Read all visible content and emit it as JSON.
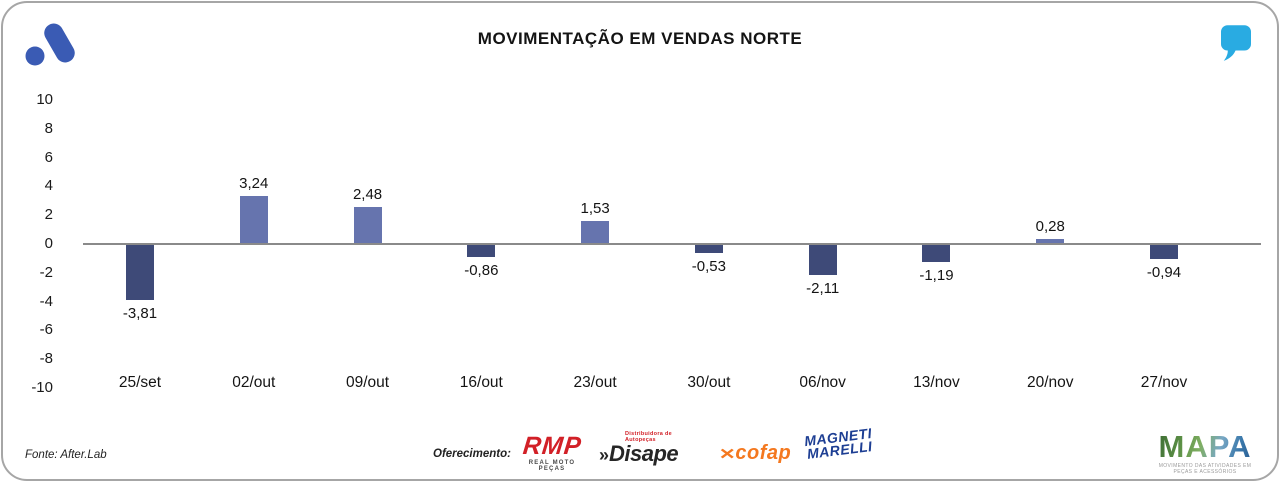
{
  "card": {
    "title": "MOVIMENTAÇÃO EM VENDAS NORTE"
  },
  "brand": {
    "left_logo_color": "#3A5BB4",
    "right_logo_color": "#29ABE2"
  },
  "chart_data": {
    "type": "bar",
    "title": "MOVIMENTAÇÃO EM VENDAS NORTE",
    "categories": [
      "25/set",
      "02/out",
      "09/out",
      "16/out",
      "23/out",
      "30/out",
      "06/nov",
      "13/nov",
      "20/nov",
      "27/nov"
    ],
    "values": [
      -3.81,
      3.24,
      2.48,
      -0.86,
      1.53,
      -0.53,
      -2.11,
      -1.19,
      0.28,
      -0.94
    ],
    "value_labels": [
      "-3,81",
      "3,24",
      "2,48",
      "-0,86",
      "1,53",
      "-0,53",
      "-2,11",
      "-1,19",
      "0,28",
      "-0,94"
    ],
    "y_ticks": [
      10,
      8,
      6,
      4,
      2,
      0,
      -2,
      -4,
      -6,
      -8,
      -10
    ],
    "ylim": [
      -10,
      10
    ],
    "xlabel": "",
    "ylabel": "",
    "grid": false,
    "legend": "none",
    "positive_color": "#6674AE",
    "negative_color": "#3E4A78",
    "axis_line_color": "#8a8a8a"
  },
  "footer": {
    "source": "Fonte: After.Lab",
    "sponsor_label": "Oferecimento:",
    "sponsors": [
      {
        "name": "RMP",
        "subtitle": "REAL MOTO PEÇAS",
        "color": "#D22027"
      },
      {
        "name": "Disape",
        "prefix": "»",
        "subtitle": "Distribuidora de Autopeças",
        "color": "#262626",
        "accent": "#D22027"
      },
      {
        "name": "cofap",
        "icon": "x-emblem",
        "color": "#F4781F"
      },
      {
        "name": "Magneti Marelli",
        "line1": "MAGNETI",
        "line2": "MARELLI",
        "color": "#1D3E93"
      }
    ],
    "mapa": {
      "name": "MAPA",
      "subtitle": "MOVIMENTO DAS ATIVIDADES EM PEÇAS E ACESSÓRIOS"
    }
  }
}
